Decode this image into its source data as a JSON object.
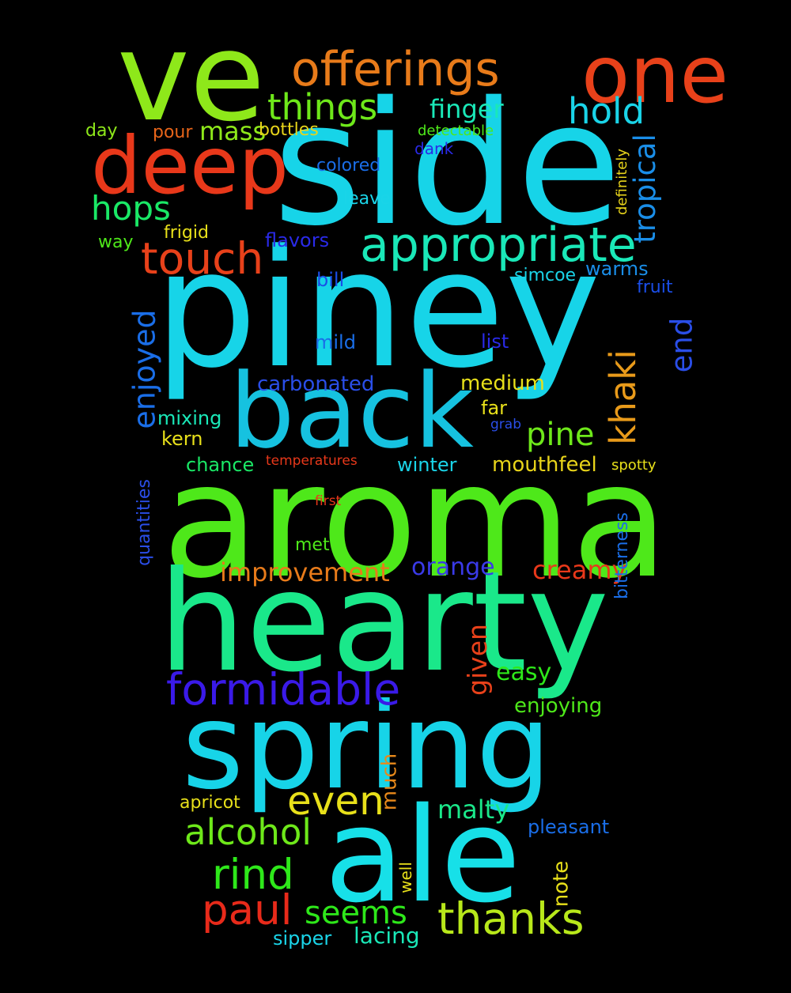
{
  "words": [
    {
      "key": "side",
      "text": "side",
      "color": "#17d4e8"
    },
    {
      "key": "piney",
      "text": "piney",
      "color": "#17d4e8"
    },
    {
      "key": "aroma",
      "text": "aroma",
      "color": "#4ee81a"
    },
    {
      "key": "hearty",
      "text": "hearty",
      "color": "#1ae88a"
    },
    {
      "key": "spring",
      "text": "spring",
      "color": "#17d4e8"
    },
    {
      "key": "ale",
      "text": "ale",
      "color": "#17e0e8"
    },
    {
      "key": "ve",
      "text": "ve",
      "color": "#8ee81a"
    },
    {
      "key": "back",
      "text": "back",
      "color": "#16c2e0"
    },
    {
      "key": "one",
      "text": "one",
      "color": "#e8411a"
    },
    {
      "key": "deep",
      "text": "deep",
      "color": "#e8381a"
    },
    {
      "key": "offerings",
      "text": "offerings",
      "color": "#e87b1a"
    },
    {
      "key": "appropriate",
      "text": "appropriate",
      "color": "#1ae8b8"
    },
    {
      "key": "touch",
      "text": "touch",
      "color": "#e8411a"
    },
    {
      "key": "formidable",
      "text": "formidable",
      "color": "#3a1ae8"
    },
    {
      "key": "thanks",
      "text": "thanks",
      "color": "#b8e81a"
    },
    {
      "key": "paul",
      "text": "paul",
      "color": "#e82a1a"
    },
    {
      "key": "rind",
      "text": "rind",
      "color": "#2ee81a"
    },
    {
      "key": "even",
      "text": "even",
      "color": "#e8e01a"
    },
    {
      "key": "alcohol",
      "text": "alcohol",
      "color": "#6ee81a"
    },
    {
      "key": "things",
      "text": "things",
      "color": "#6ee81a"
    },
    {
      "key": "hold",
      "text": "hold",
      "color": "#1ad4e8"
    },
    {
      "key": "hops",
      "text": "hops",
      "color": "#1ae866"
    },
    {
      "key": "pine",
      "text": "pine",
      "color": "#6ee81a"
    },
    {
      "key": "seems",
      "text": "seems",
      "color": "#2ee81a"
    },
    {
      "key": "finger",
      "text": "finger",
      "color": "#1ae8b8"
    },
    {
      "key": "mass",
      "text": "mass",
      "color": "#8ee81a"
    },
    {
      "key": "improvement",
      "text": "improvement",
      "color": "#e87b1a"
    },
    {
      "key": "creamy",
      "text": "creamy",
      "color": "#e8381a"
    },
    {
      "key": "malty",
      "text": "malty",
      "color": "#1ae88a"
    },
    {
      "key": "easy",
      "text": "easy",
      "color": "#2ee81a"
    },
    {
      "key": "orange",
      "text": "orange",
      "color": "#3a3ae8"
    },
    {
      "key": "carbonated",
      "text": "carbonated",
      "color": "#2a4ee8"
    },
    {
      "key": "medium",
      "text": "medium",
      "color": "#e8e01a"
    },
    {
      "key": "mouthfeel",
      "text": "mouthfeel",
      "color": "#e8d41a"
    },
    {
      "key": "enjoying",
      "text": "enjoying",
      "color": "#4ee81a"
    },
    {
      "key": "pleasant",
      "text": "pleasant",
      "color": "#1a6ee8"
    },
    {
      "key": "lacing",
      "text": "lacing",
      "color": "#1ae8b8"
    },
    {
      "key": "sipper",
      "text": "sipper",
      "color": "#1ad4e8"
    },
    {
      "key": "winter",
      "text": "winter",
      "color": "#1ad4e8"
    },
    {
      "key": "chance",
      "text": "chance",
      "color": "#1ae866"
    },
    {
      "key": "mixing",
      "text": "mixing",
      "color": "#1ae8b8"
    },
    {
      "key": "kern",
      "text": "kern",
      "color": "#e8e01a"
    },
    {
      "key": "far",
      "text": "far",
      "color": "#e8e01a"
    },
    {
      "key": "mild",
      "text": "mild",
      "color": "#1a6ee8"
    },
    {
      "key": "bill",
      "text": "bill",
      "color": "#1a4ee8"
    },
    {
      "key": "list",
      "text": "list",
      "color": "#2a2ae8"
    },
    {
      "key": "flavors",
      "text": "flavors",
      "color": "#2a2ae8"
    },
    {
      "key": "warms",
      "text": "warms",
      "color": "#1a8ee8"
    },
    {
      "key": "simcoe",
      "text": "simcoe",
      "color": "#1ad4e8"
    },
    {
      "key": "fruit",
      "text": "fruit",
      "color": "#1a4ee8"
    },
    {
      "key": "colored",
      "text": "colored",
      "color": "#1a6ee8"
    },
    {
      "key": "leave",
      "text": "leave",
      "color": "#1ad4e8"
    },
    {
      "key": "frigid",
      "text": "frigid",
      "color": "#e8e01a"
    },
    {
      "key": "way",
      "text": "way",
      "color": "#4ee81a"
    },
    {
      "key": "bottles",
      "text": "bottles",
      "color": "#e8d41a"
    },
    {
      "key": "pour",
      "text": "pour",
      "color": "#e8651a"
    },
    {
      "key": "day",
      "text": "day",
      "color": "#8ee81a"
    },
    {
      "key": "dank",
      "text": "dank",
      "color": "#2a2ae8"
    },
    {
      "key": "detectable",
      "text": "detectable",
      "color": "#4ee81a"
    },
    {
      "key": "met",
      "text": "met",
      "color": "#4ee81a"
    },
    {
      "key": "apricot",
      "text": "apricot",
      "color": "#e8e01a"
    },
    {
      "key": "spotty",
      "text": "spotty",
      "color": "#e8e01a"
    },
    {
      "key": "grab",
      "text": "grab",
      "color": "#2a4ee8"
    },
    {
      "key": "temperatures",
      "text": "temperatures",
      "color": "#e8381a"
    },
    {
      "key": "first",
      "text": "first",
      "color": "#e8381a"
    },
    {
      "key": "tropical",
      "text": "tropical",
      "color": "#1a8ee8"
    },
    {
      "key": "khaki",
      "text": "khaki",
      "color": "#e89a1a"
    },
    {
      "key": "end",
      "text": "end",
      "color": "#2a4ee8"
    },
    {
      "key": "enjoyed",
      "text": "enjoyed",
      "color": "#1a6ee8"
    },
    {
      "key": "given",
      "text": "given",
      "color": "#e8411a"
    },
    {
      "key": "much",
      "text": "much",
      "color": "#e8891a"
    },
    {
      "key": "note",
      "text": "note",
      "color": "#e8e01a"
    },
    {
      "key": "well",
      "text": "well",
      "color": "#e8e01a"
    },
    {
      "key": "quantities",
      "text": "quantities",
      "color": "#2a4ee8"
    },
    {
      "key": "bitterness",
      "text": "bitterness",
      "color": "#1a6ee8"
    },
    {
      "key": "definitely",
      "text": "definitely",
      "color": "#e8d41a"
    }
  ]
}
